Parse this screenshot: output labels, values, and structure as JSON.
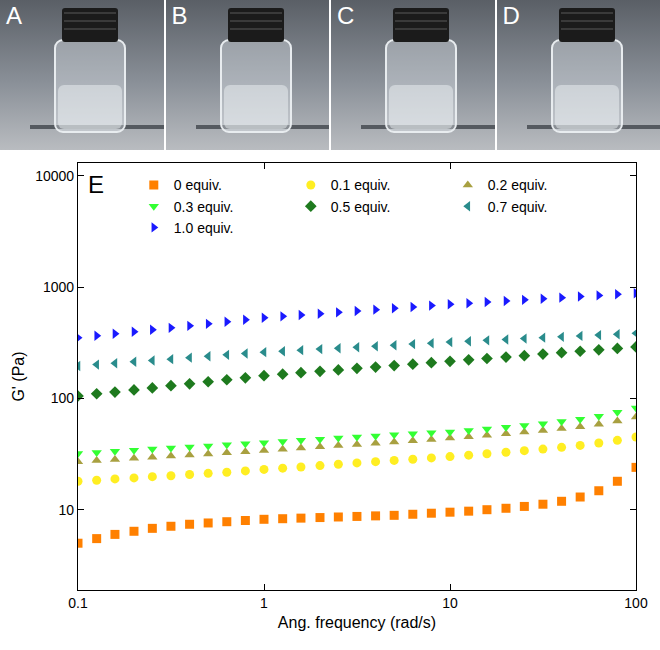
{
  "panels": {
    "labels": [
      "A",
      "B",
      "C",
      "D"
    ]
  },
  "chart_data": {
    "type": "scatter",
    "annotations": [
      "E"
    ],
    "x_label": "Ang. frequency (rad/s)",
    "y_label": "G' (Pa)",
    "log": true,
    "grid": false,
    "legend": "upper left",
    "xlim": [
      0.1,
      100
    ],
    "xticks": [
      0.1,
      1,
      10,
      100
    ],
    "ylim": [
      1.9,
      13000
    ],
    "yticks": [
      10,
      100,
      1000,
      10000
    ],
    "x": [
      0.1,
      0.126,
      0.158,
      0.2,
      0.251,
      0.316,
      0.398,
      0.501,
      0.631,
      0.794,
      1,
      1.26,
      1.58,
      2,
      2.51,
      3.16,
      3.98,
      5.01,
      6.31,
      7.94,
      10,
      12.6,
      15.8,
      20,
      25.1,
      31.6,
      39.8,
      50.1,
      63.1,
      79.4,
      100
    ],
    "series": [
      {
        "name": "0 equiv.",
        "color": "#ff8000",
        "marker": "square",
        "values": [
          5,
          5.5,
          6,
          6.4,
          6.8,
          7.1,
          7.4,
          7.6,
          7.8,
          8,
          8.2,
          8.3,
          8.4,
          8.5,
          8.6,
          8.7,
          8.8,
          8.9,
          9.1,
          9.3,
          9.5,
          9.7,
          10,
          10.3,
          10.7,
          11.2,
          11.9,
          13,
          14.8,
          18,
          24
        ]
      },
      {
        "name": "0.1 equiv.",
        "color": "#ffee22",
        "marker": "circle",
        "values": [
          18,
          18.4,
          18.9,
          19.3,
          19.8,
          20.2,
          20.7,
          21.2,
          21.7,
          22.3,
          23,
          23.6,
          24.2,
          24.9,
          25.6,
          26.3,
          27,
          27.7,
          28.4,
          29.2,
          30,
          30.9,
          31.8,
          32.8,
          33.9,
          35,
          36.3,
          37.8,
          39.7,
          42,
          45
        ]
      },
      {
        "name": "0.2 equiv.",
        "color": "#a8a040",
        "marker": "triangle-up",
        "values": [
          27,
          27.6,
          28.3,
          29,
          29.6,
          30.3,
          31,
          31.7,
          32.5,
          33.2,
          34,
          34.9,
          35.8,
          36.7,
          37.7,
          38.6,
          39.6,
          40.6,
          41.7,
          42.8,
          44,
          45.3,
          46.7,
          48.2,
          49.8,
          51.5,
          53.5,
          55.7,
          58.5,
          62.5,
          68
        ]
      },
      {
        "name": "0.3 equiv.",
        "color": "#33ff33",
        "marker": "triangle-down",
        "values": [
          32,
          32.7,
          33.5,
          34.2,
          35,
          35.8,
          36.6,
          37.4,
          38.3,
          39.1,
          40,
          41,
          42,
          43,
          44,
          45,
          46,
          47,
          48,
          49,
          50,
          51.5,
          53,
          55,
          57,
          59,
          62,
          65,
          69,
          75,
          82
        ]
      },
      {
        "name": "0.5 equiv.",
        "color": "#1e7a1e",
        "marker": "diamond",
        "values": [
          105,
          110,
          114,
          119,
          124,
          130,
          135,
          141,
          147,
          153,
          160,
          165,
          170,
          175,
          180,
          186,
          191,
          197,
          203,
          209,
          215,
          222,
          228,
          235,
          242,
          250,
          257,
          265,
          273,
          281,
          290
        ]
      },
      {
        "name": "0.7 equiv.",
        "color": "#2a8c8c",
        "marker": "triangle-left",
        "values": [
          195,
          201,
          207,
          213,
          219,
          225,
          232,
          239,
          246,
          253,
          260,
          265,
          271,
          277,
          282,
          288,
          294,
          300,
          307,
          313,
          320,
          326,
          332,
          338,
          344,
          351,
          357,
          364,
          370,
          377,
          385
        ]
      },
      {
        "name": "1.0 equiv.",
        "color": "#1a1aff",
        "marker": "triangle-right",
        "values": [
          350,
          365,
          380,
          396,
          413,
          430,
          448,
          467,
          487,
          508,
          530,
          545,
          560,
          576,
          592,
          609,
          626,
          644,
          662,
          681,
          700,
          716,
          733,
          750,
          767,
          785,
          803,
          822,
          841,
          860,
          880
        ]
      }
    ]
  }
}
